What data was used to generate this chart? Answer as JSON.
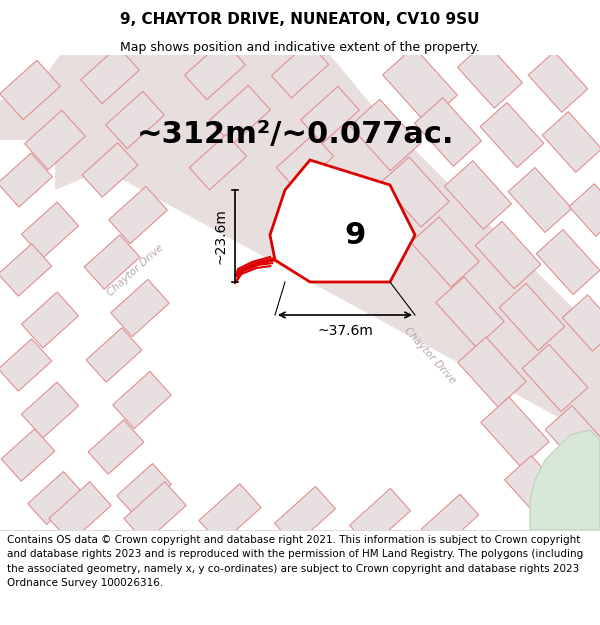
{
  "title": "9, CHAYTOR DRIVE, NUNEATON, CV10 9SU",
  "subtitle": "Map shows position and indicative extent of the property.",
  "area_text": "~312m²/~0.077ac.",
  "label_number": "9",
  "dim1_text": "~23.6m",
  "dim2_text": "~37.6m",
  "footer": "Contains OS data © Crown copyright and database right 2021. This information is subject to Crown copyright and database rights 2023 and is reproduced with the permission of HM Land Registry. The polygons (including the associated geometry, namely x, y co-ordinates) are subject to Crown copyright and database rights 2023 Ordnance Survey 100026316.",
  "map_bg": "#ffffff",
  "road_fill": "#e8dede",
  "building_fill": "#e8e0e0",
  "building_edge": "#e09090",
  "plot_fill": "#ffffff",
  "plot_edge": "#dd0000",
  "road_label_color": "#b8a8a8",
  "title_fontsize": 11,
  "subtitle_fontsize": 9,
  "area_fontsize": 22,
  "label_fontsize": 22,
  "dim_fontsize": 10,
  "footer_fontsize": 7.5
}
